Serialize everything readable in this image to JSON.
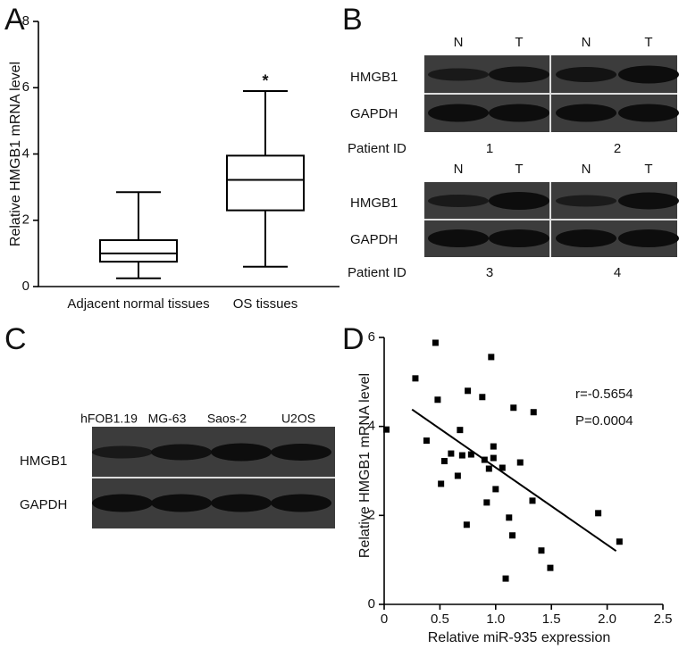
{
  "panel_labels": [
    "A",
    "B",
    "C",
    "D"
  ],
  "chart_data": [
    {
      "type": "box",
      "ylabel": "Relative HMGB1 mRNA level",
      "categories": [
        "Adjacent normal tissues",
        "OS tissues"
      ],
      "whisker_low": [
        0.25,
        0.6
      ],
      "q1": [
        0.75,
        2.3
      ],
      "median": [
        1.0,
        3.22
      ],
      "q3": [
        1.4,
        3.95
      ],
      "whisker_high": [
        2.85,
        5.9
      ],
      "annotations": [
        "",
        "*"
      ],
      "ylim": [
        0,
        8
      ],
      "yticks": [
        0,
        2,
        4,
        6,
        8
      ]
    },
    {
      "type": "scatter",
      "xlabel": "Relative miR-935 expression",
      "ylabel": "Relative HMGB1 mRNA level",
      "x": [
        0.02,
        0.28,
        0.46,
        0.48,
        0.38,
        0.54,
        0.6,
        0.51,
        0.68,
        0.75,
        0.7,
        0.66,
        0.88,
        0.96,
        0.78,
        0.9,
        0.98,
        0.98,
        0.94,
        1.06,
        1.0,
        0.92,
        0.74,
        1.12,
        1.15,
        1.09,
        1.16,
        1.22,
        1.34,
        1.33,
        1.41,
        1.49,
        1.92,
        2.11
      ],
      "y": [
        3.93,
        5.08,
        5.88,
        4.6,
        3.68,
        3.22,
        3.39,
        2.71,
        3.92,
        4.8,
        3.35,
        2.89,
        4.66,
        5.56,
        3.37,
        3.25,
        3.55,
        3.29,
        3.05,
        3.07,
        2.59,
        2.29,
        1.79,
        1.95,
        1.55,
        0.58,
        4.42,
        3.19,
        4.32,
        2.33,
        1.21,
        0.82,
        2.05,
        1.41
      ],
      "fit_line": {
        "x": [
          0.25,
          2.08
        ],
        "y": [
          4.38,
          1.2
        ]
      },
      "annotations": [
        "r=-0.5654",
        "P=0.0004"
      ],
      "xlim": [
        0,
        2.5
      ],
      "xticks": [
        0,
        0.5,
        {
          "value": 1,
          "label": "1.0"
        },
        1.5,
        {
          "value": 2,
          "label": "2.0"
        },
        2.5
      ],
      "ylim": [
        0,
        6
      ],
      "yticks": [
        0,
        2,
        4,
        6
      ]
    }
  ],
  "blots": {
    "B": {
      "lanes": [
        "N",
        "T",
        "N",
        "T"
      ],
      "rows": [
        "HMGB1",
        "GAPDH"
      ],
      "patient_label": "Patient ID",
      "patients_top": [
        "1",
        "2"
      ],
      "patients_bottom": [
        "3",
        "4"
      ]
    },
    "C": {
      "lanes": [
        "hFOB1.19",
        "MG-63",
        "Saos-2",
        "U2OS"
      ],
      "rows": [
        "HMGB1",
        "GAPDH"
      ]
    }
  }
}
